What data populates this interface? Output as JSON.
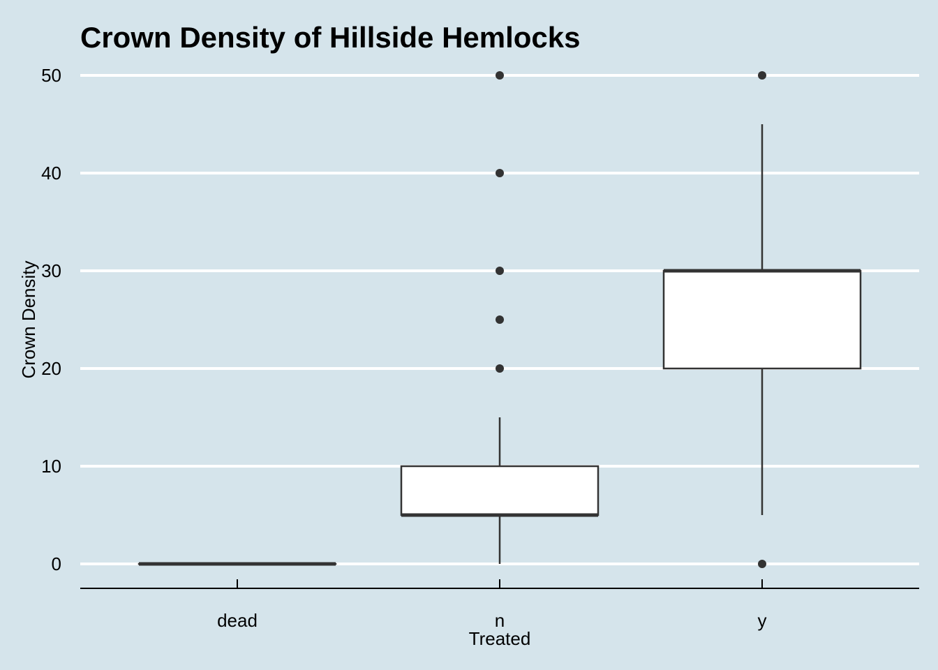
{
  "chart_data": {
    "type": "boxplot",
    "title": "Crown Density of Hillside Hemlocks",
    "xlabel": "Treated",
    "ylabel": "Crown Density",
    "ylim": [
      -2.5,
      52.5
    ],
    "yticks": [
      0,
      10,
      20,
      30,
      40,
      50
    ],
    "grid": "horizontal major gridlines",
    "categories": [
      "dead",
      "n",
      "y"
    ],
    "boxes": [
      {
        "category": "dead",
        "min": 0,
        "q1": 0,
        "median": 0,
        "q3": 0,
        "max": 0,
        "outliers": []
      },
      {
        "category": "n",
        "min": 0,
        "q1": 5,
        "median": 5,
        "q3": 10,
        "max": 15,
        "outliers": [
          20,
          25,
          30,
          40,
          50
        ]
      },
      {
        "category": "y",
        "min": 5,
        "q1": 20,
        "median": 30,
        "q3": 30,
        "max": 45,
        "outliers": [
          0,
          50
        ]
      }
    ]
  },
  "colors": {
    "background": "#d5e4eb",
    "gridline": "#ffffff",
    "box_fill": "#ffffff",
    "box_stroke": "#333333",
    "axis": "#000000"
  }
}
